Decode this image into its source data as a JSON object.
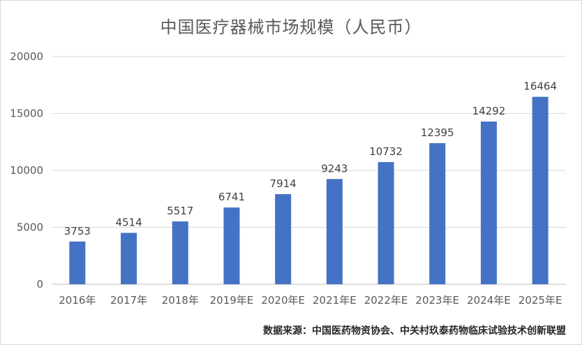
{
  "chart_data": {
    "type": "bar",
    "title": "中国医疗器械市场规模（人民币）",
    "categories": [
      "2016年",
      "2017年",
      "2018年",
      "2019年E",
      "2020年E",
      "2021年E",
      "2022年E",
      "2023年E",
      "2024年E",
      "2025年E"
    ],
    "values": [
      3753,
      4514,
      5517,
      6741,
      7914,
      9243,
      10732,
      12395,
      14292,
      16464
    ],
    "ylim": [
      0,
      20000
    ],
    "yticks": [
      0,
      5000,
      10000,
      15000,
      20000
    ],
    "grid": true,
    "bar_color": "#4472C4",
    "source": "数据来源：中国医药物资协会、中关村玖泰药物临床试验技术创新联盟"
  }
}
